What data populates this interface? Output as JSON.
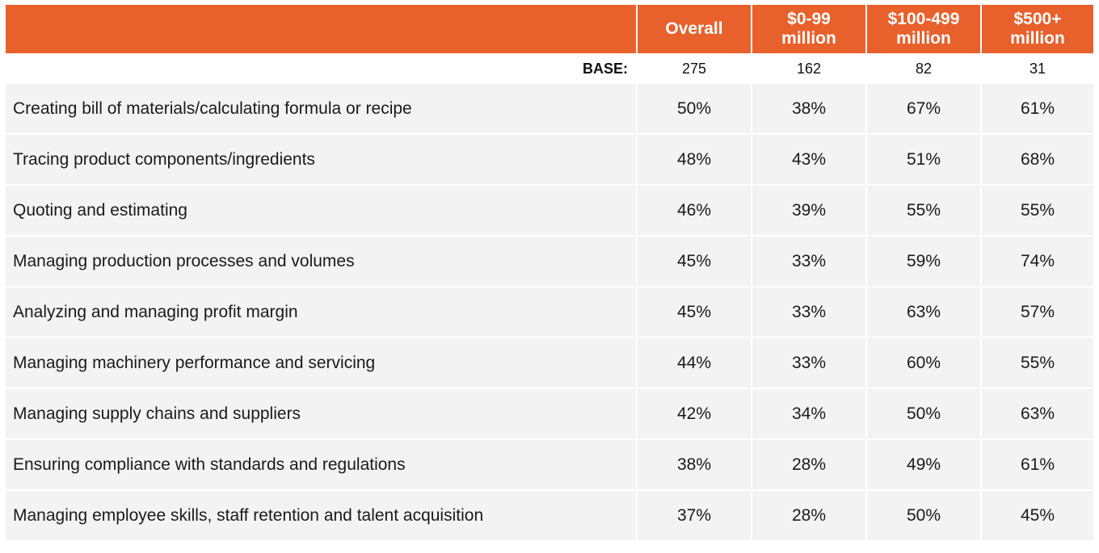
{
  "header": {
    "columns": [
      "Overall",
      "$0-99 million",
      "$100-499 million",
      "$500+ million"
    ],
    "columns_lines": [
      [
        "Overall"
      ],
      [
        "$0-99",
        "million"
      ],
      [
        "$100-499",
        "million"
      ],
      [
        "$500+",
        "million"
      ]
    ]
  },
  "base": {
    "label": "BASE:",
    "values": [
      "275",
      "162",
      "82",
      "31"
    ]
  },
  "rows": [
    {
      "label": "Creating bill of materials/calculating formula or recipe",
      "values": [
        "50%",
        "38%",
        "67%",
        "61%"
      ]
    },
    {
      "label": "Tracing product components/ingredients",
      "values": [
        "48%",
        "43%",
        "51%",
        "68%"
      ]
    },
    {
      "label": "Quoting and estimating",
      "values": [
        "46%",
        "39%",
        "55%",
        "55%"
      ]
    },
    {
      "label": "Managing production processes and volumes",
      "values": [
        "45%",
        "33%",
        "59%",
        "74%"
      ]
    },
    {
      "label": "Analyzing and managing profit margin",
      "values": [
        "45%",
        "33%",
        "63%",
        "57%"
      ]
    },
    {
      "label": "Managing machinery performance and servicing",
      "values": [
        "44%",
        "33%",
        "60%",
        "55%"
      ]
    },
    {
      "label": "Managing supply chains and suppliers",
      "values": [
        "42%",
        "34%",
        "50%",
        "63%"
      ]
    },
    {
      "label": "Ensuring compliance with standards and regulations",
      "values": [
        "38%",
        "28%",
        "49%",
        "61%"
      ]
    },
    {
      "label": "Managing employee skills, staff retention and talent acquisition",
      "values": [
        "37%",
        "28%",
        "50%",
        "45%"
      ]
    }
  ],
  "colors": {
    "header_bg": "#e8602c",
    "header_text": "#ffffff",
    "row_bg": "#f3f3f3",
    "text": "#1a1a1a"
  }
}
